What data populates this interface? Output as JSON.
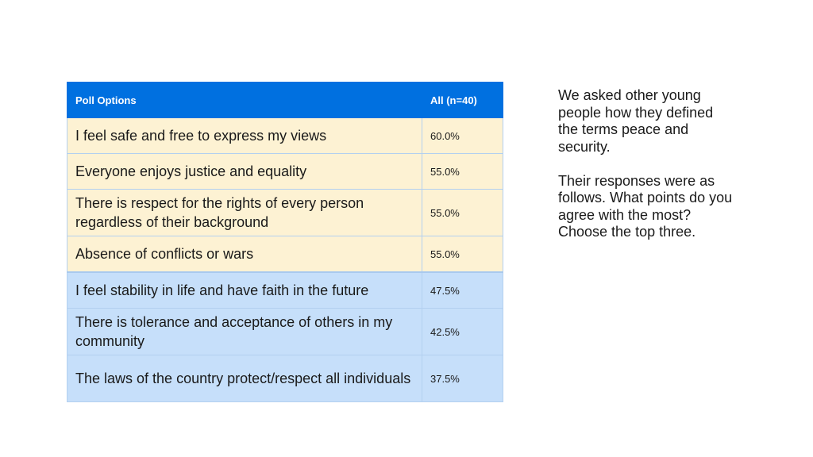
{
  "table": {
    "header": {
      "option_label": "Poll Options",
      "pct_label": "All (n=40)"
    },
    "rows": [
      {
        "option": "I feel safe and free to express my views",
        "pct": "60.0%"
      },
      {
        "option": "Everyone enjoys justice and equality",
        "pct": "55.0%"
      },
      {
        "option": "There is respect for the rights of every person regardless of their background",
        "pct": "55.0%"
      },
      {
        "option": "Absence of conflicts or wars",
        "pct": "55.0%"
      },
      {
        "option": "I feel stability in life and have faith in the future",
        "pct": "47.5%"
      },
      {
        "option": "There is tolerance and acceptance of others in my community",
        "pct": "42.5%"
      },
      {
        "option": "The laws of the country protect/respect all individuals",
        "pct": "37.5%"
      }
    ]
  },
  "sidebar": {
    "intro": "We asked other young people how they defined the terms peace and security.",
    "question": "Their responses were as follows. What points do you agree with the most? Choose the top three."
  },
  "colors": {
    "header_bg": "#0070e0",
    "top_rows_bg": "#fdf2d3",
    "other_rows_bg": "#c6dffa"
  }
}
